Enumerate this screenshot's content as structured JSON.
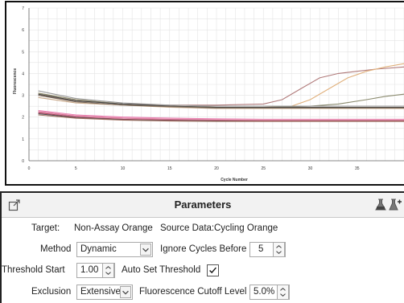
{
  "chart_data": {
    "type": "line",
    "xlabel": "Cycle Number",
    "ylabel": "Fluorescence",
    "xlim": [
      0,
      40
    ],
    "ylim": [
      0,
      7
    ],
    "x_ticks": [
      0,
      5,
      10,
      15,
      20,
      25,
      30,
      35
    ],
    "y_ticks": [
      0,
      1,
      2,
      3,
      4,
      5,
      6,
      7
    ],
    "grid": true,
    "series": [
      {
        "color": "#b07a7a",
        "x": [
          1,
          5,
          10,
          15,
          20,
          25,
          27,
          29,
          31,
          33,
          35,
          37,
          40
        ],
        "y": [
          3.0,
          2.75,
          2.6,
          2.55,
          2.55,
          2.6,
          2.8,
          3.3,
          3.8,
          4.0,
          4.1,
          4.2,
          4.3
        ]
      },
      {
        "color": "#e0b07c",
        "x": [
          1,
          5,
          10,
          15,
          20,
          25,
          28,
          30,
          32,
          34,
          36,
          38,
          40
        ],
        "y": [
          3.1,
          2.8,
          2.6,
          2.5,
          2.45,
          2.45,
          2.5,
          2.8,
          3.3,
          3.8,
          4.1,
          4.3,
          4.45
        ]
      },
      {
        "color": "#8a8a6e",
        "x": [
          1,
          5,
          10,
          15,
          20,
          25,
          30,
          33,
          36,
          38,
          40
        ],
        "y": [
          3.1,
          2.8,
          2.6,
          2.5,
          2.45,
          2.45,
          2.5,
          2.6,
          2.8,
          2.95,
          3.05
        ]
      },
      {
        "color": "#444444",
        "x": [
          1,
          5,
          10,
          15,
          20,
          25,
          30,
          35,
          40
        ],
        "y": [
          3.05,
          2.75,
          2.6,
          2.5,
          2.45,
          2.45,
          2.45,
          2.45,
          2.45
        ]
      },
      {
        "color": "#9a9a9a",
        "x": [
          1,
          5,
          10,
          15,
          20,
          25,
          30,
          35,
          40
        ],
        "y": [
          3.2,
          2.85,
          2.65,
          2.55,
          2.5,
          2.5,
          2.5,
          2.5,
          2.5
        ]
      },
      {
        "color": "#c9a98a",
        "x": [
          1,
          5,
          10,
          15,
          20,
          25,
          30,
          35,
          40
        ],
        "y": [
          2.9,
          2.65,
          2.55,
          2.45,
          2.4,
          2.4,
          2.4,
          2.4,
          2.4
        ]
      },
      {
        "color": "#7a6a5a",
        "x": [
          1,
          5,
          10,
          15,
          20,
          25,
          30,
          35,
          40
        ],
        "y": [
          3.0,
          2.7,
          2.55,
          2.48,
          2.42,
          2.42,
          2.42,
          2.42,
          2.42
        ]
      },
      {
        "color": "#d07090",
        "x": [
          1,
          5,
          10,
          15,
          20,
          25,
          30,
          35,
          40
        ],
        "y": [
          2.25,
          2.05,
          1.95,
          1.9,
          1.88,
          1.87,
          1.87,
          1.87,
          1.87
        ]
      },
      {
        "color": "#e060a0",
        "x": [
          1,
          5,
          10,
          15,
          20,
          25,
          30,
          35,
          40
        ],
        "y": [
          2.3,
          2.1,
          2.0,
          1.95,
          1.92,
          1.9,
          1.9,
          1.9,
          1.9
        ]
      },
      {
        "color": "#b04060",
        "x": [
          1,
          5,
          10,
          15,
          20,
          25,
          30,
          35,
          40
        ],
        "y": [
          2.2,
          2.0,
          1.9,
          1.86,
          1.84,
          1.83,
          1.83,
          1.83,
          1.83
        ]
      },
      {
        "color": "#555555",
        "x": [
          1,
          5,
          10,
          15,
          20,
          25,
          30,
          35,
          40
        ],
        "y": [
          2.15,
          1.98,
          1.88,
          1.84,
          1.82,
          1.81,
          1.81,
          1.81,
          1.81
        ]
      },
      {
        "color": "#a07060",
        "x": [
          1,
          5,
          10,
          15,
          20,
          25,
          30,
          35,
          40
        ],
        "y": [
          2.1,
          1.95,
          1.86,
          1.82,
          1.8,
          1.8,
          1.8,
          1.8,
          1.8
        ]
      },
      {
        "color": "#f0a0c0",
        "x": [
          1,
          5,
          10,
          15,
          20,
          25,
          30,
          35,
          40
        ],
        "y": [
          2.28,
          2.08,
          1.98,
          1.93,
          1.9,
          1.89,
          1.89,
          1.89,
          1.89
        ]
      }
    ]
  },
  "parameters": {
    "title": "Parameters",
    "target_label": "Target:",
    "target_value": "Non-Assay Orange",
    "source_label": "Source Data:",
    "source_value": "Cycling Orange",
    "method_label": "Method",
    "method_value": "Dynamic",
    "ignore_cycles_label": "Ignore Cycles Before",
    "ignore_cycles_value": "5",
    "threshold_start_label": "Threshold Start",
    "threshold_start_value": "1.00",
    "auto_threshold_label": "Auto Set Threshold",
    "auto_threshold_checked": true,
    "exclusion_label": "Exclusion",
    "exclusion_value": "Extensive",
    "cutoff_label": "Fluorescence Cutoff Level",
    "cutoff_value": "5.0%"
  },
  "icons": {
    "header_left": "expand-icon",
    "header_right_1": "flask-icon",
    "header_right_2": "flask-add-icon"
  }
}
